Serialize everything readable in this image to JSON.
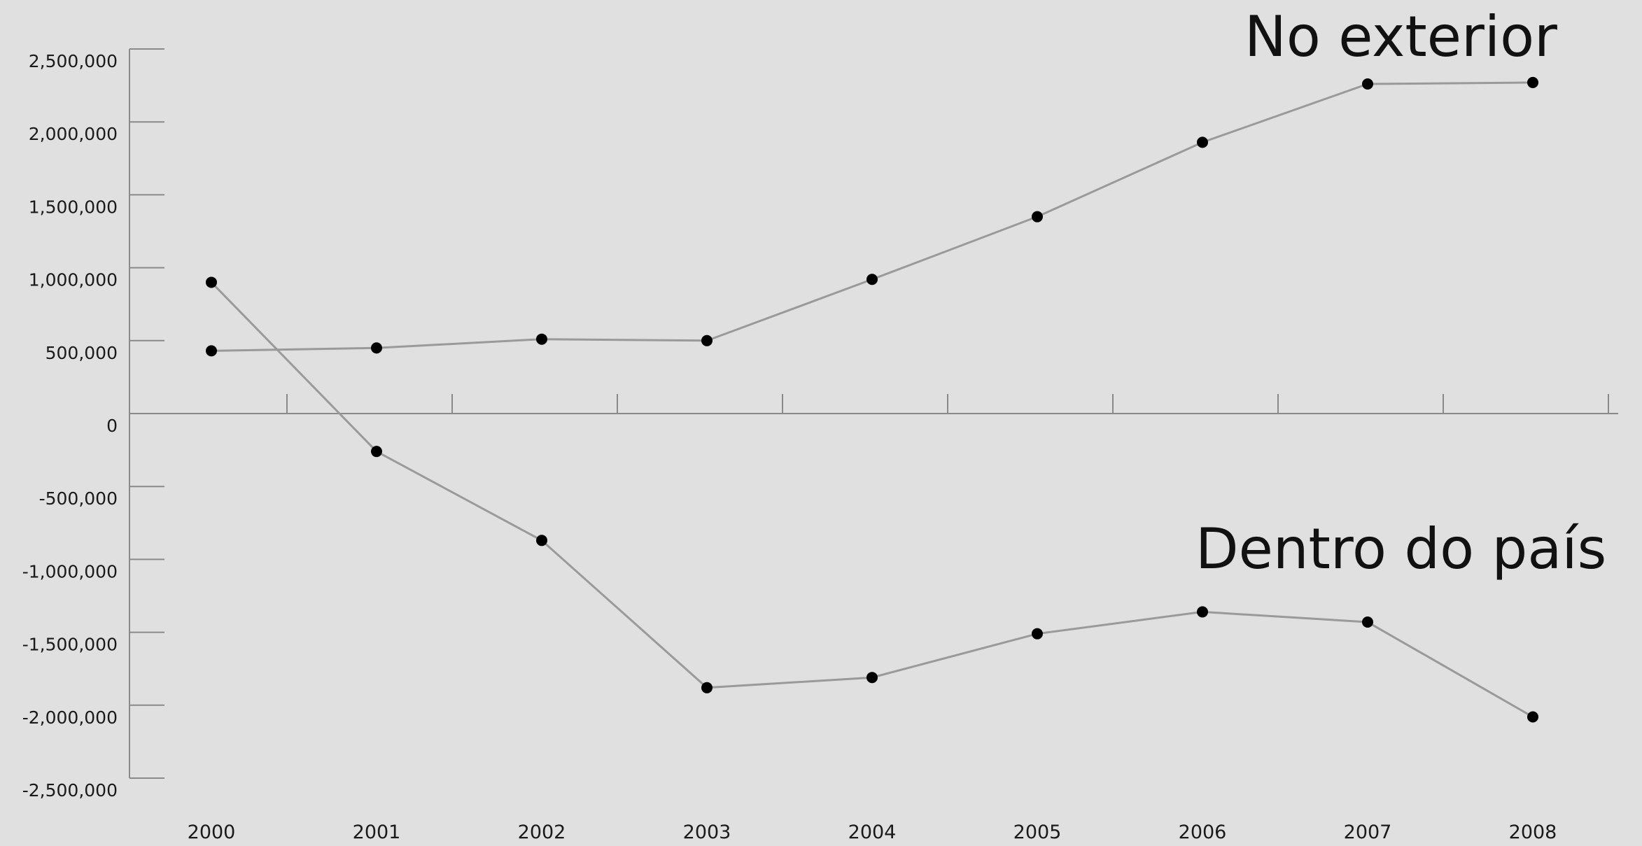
{
  "chart_data": {
    "type": "line",
    "title": "",
    "xlabel": "",
    "ylabel": "",
    "categories": [
      "2000",
      "2001",
      "2002",
      "2003",
      "2004",
      "2005",
      "2006",
      "2007",
      "2008"
    ],
    "ylim": [
      -2500000,
      2500000
    ],
    "yticks": [
      2500000,
      2000000,
      1500000,
      1000000,
      500000,
      0,
      -500000,
      -1000000,
      -1500000,
      -2000000,
      -2500000
    ],
    "ytick_labels": [
      "2,500,000",
      "2,000,000",
      "1,500,000",
      "1,000,000",
      "500,000",
      "0",
      "-500,000",
      "-1,000,000",
      "-1,500,000",
      "-2,000,000",
      "-2,500,000"
    ],
    "grid": false,
    "series": [
      {
        "name": "No exterior",
        "values": [
          430000,
          450000,
          510000,
          500000,
          920000,
          1350000,
          1860000,
          2260000,
          2270000
        ]
      },
      {
        "name": "Dentro do país",
        "values": [
          900000,
          -260000,
          -870000,
          -1880000,
          -1810000,
          -1510000,
          -1360000,
          -1430000,
          -2080000
        ]
      }
    ],
    "colors": {
      "line": "#9a9a9a",
      "marker": "#000000",
      "axis": "#8a8a8a",
      "background": "#e0e0e0"
    }
  }
}
